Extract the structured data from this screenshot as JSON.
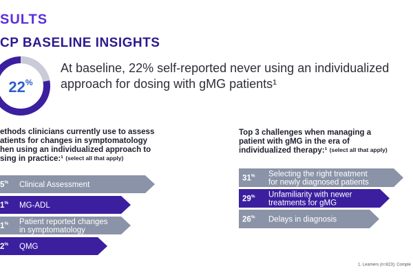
{
  "header": {
    "section": "SULTS",
    "title": "CP BASELINE INSIGHTS"
  },
  "donut": {
    "value": 22,
    "unit": "%",
    "statement_lines": [
      "At baseline, 22% self-reported never using an individualized",
      "approach for dosing with gMG patients¹"
    ]
  },
  "left": {
    "heading_lines": [
      "ethods clinicians currently use to assess",
      "atients for changes in symptomatology",
      "hen using an individualized approach to",
      "sing in practice:¹"
    ],
    "heading_note": "(select all that apply)",
    "items": [
      {
        "value": "5",
        "unit": "%",
        "label_lines": [
          "Clinical Assessment"
        ]
      },
      {
        "value": "1",
        "unit": "%",
        "label_lines": [
          "MG-ADL"
        ]
      },
      {
        "value": "1",
        "unit": "%",
        "label_lines": [
          "Patient reported changes",
          "in symptomatology"
        ]
      },
      {
        "value": "2",
        "unit": "%",
        "label_lines": [
          "QMG"
        ]
      }
    ]
  },
  "right": {
    "heading_lines": [
      "Top 3 challenges when managing a",
      "patient with gMG in the era of",
      "individualized therapy:¹"
    ],
    "heading_note": "(select all that apply)",
    "items": [
      {
        "value": "31",
        "unit": "%",
        "label_lines": [
          "Selecting the right treatment",
          "for newly diagnosed patients"
        ]
      },
      {
        "value": "29",
        "unit": "%",
        "label_lines": [
          "Unfamiliarity with newer",
          "treatments for gMG"
        ]
      },
      {
        "value": "26",
        "unit": "%",
        "label_lines": [
          "Delays in diagnosis"
        ]
      }
    ]
  },
  "footnote": "1. Learners (n=823); Comple"
}
